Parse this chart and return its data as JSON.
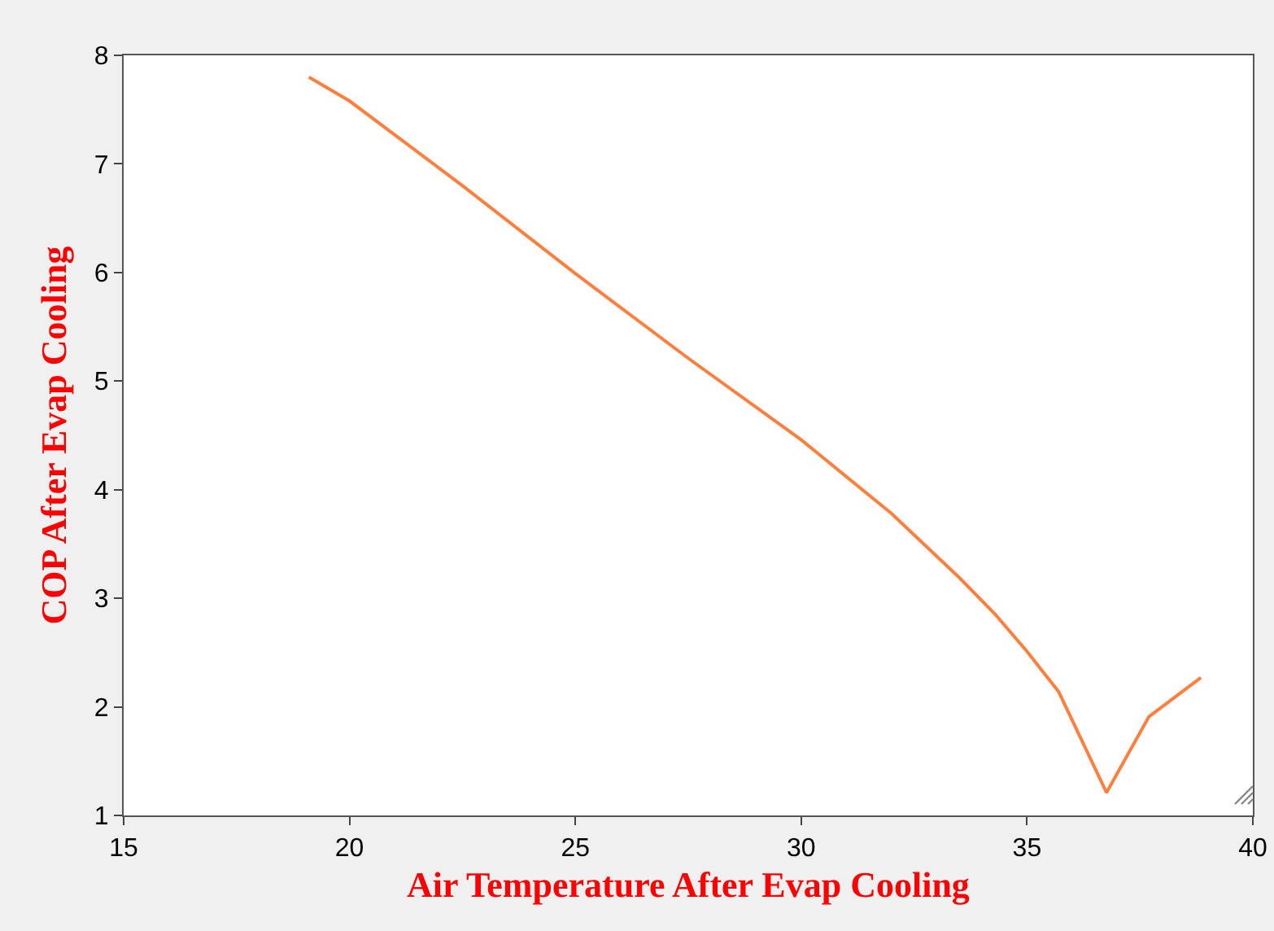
{
  "chart_data": {
    "type": "line",
    "xlabel": "Air Temperature After Evap Cooling",
    "ylabel": "COP After Evap Cooling",
    "x": [
      19.1,
      20,
      22.5,
      25,
      27.5,
      30,
      32,
      33.5,
      34.3,
      35,
      35.7,
      36.76,
      37.7,
      38.85
    ],
    "series": [
      {
        "color": "#ff7f3f",
        "values": [
          7.8,
          7.58,
          6.8,
          5.99,
          5.21,
          4.46,
          3.78,
          3.19,
          2.85,
          2.51,
          2.14,
          1.21,
          1.91,
          2.27
        ]
      }
    ],
    "xlim": [
      15,
      40
    ],
    "xticks": [
      15,
      20,
      25,
      30,
      35,
      40
    ],
    "ylim": [
      1,
      8
    ],
    "yticks": [
      1,
      2,
      3,
      4,
      5,
      6,
      7,
      8
    ],
    "grid": false,
    "legend": false,
    "marker": "none",
    "line_style": "solid"
  }
}
